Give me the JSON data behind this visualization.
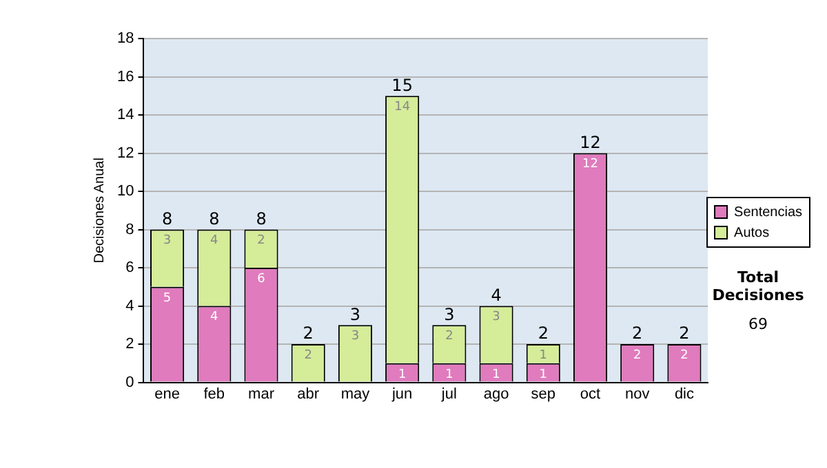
{
  "chart_data": {
    "type": "bar",
    "stacked": true,
    "ylabel": "Decisiones Anual",
    "categories": [
      "ene",
      "feb",
      "mar",
      "abr",
      "may",
      "jun",
      "jul",
      "ago",
      "sep",
      "oct",
      "nov",
      "dic"
    ],
    "series": [
      {
        "name": "Sentencias",
        "color": "#e07bbd",
        "values": [
          5,
          4,
          6,
          0,
          0,
          1,
          1,
          1,
          1,
          12,
          2,
          2
        ],
        "value_labels": [
          "5",
          "4",
          "6",
          null,
          null,
          "1",
          "1",
          "1",
          "1",
          "12",
          "2",
          "2"
        ]
      },
      {
        "name": "Autos",
        "color": "#d5ec99",
        "values": [
          3,
          4,
          2,
          2,
          3,
          14,
          2,
          3,
          1,
          0,
          0,
          0
        ],
        "value_labels": [
          "3",
          "4",
          "2",
          "2",
          "3",
          "14",
          "2",
          "3",
          "1",
          null,
          null,
          null
        ]
      }
    ],
    "totals": [
      "8",
      "8",
      "8",
      "2",
      "3",
      "15",
      "3",
      "4",
      "2",
      "12",
      "2",
      "2"
    ],
    "ylim": [
      0,
      18
    ],
    "yticks": [
      0,
      2,
      4,
      6,
      8,
      10,
      12,
      14,
      16,
      18
    ],
    "grid": "y",
    "legend": "right",
    "annotations": [
      "Total Decisiones",
      "69"
    ]
  }
}
